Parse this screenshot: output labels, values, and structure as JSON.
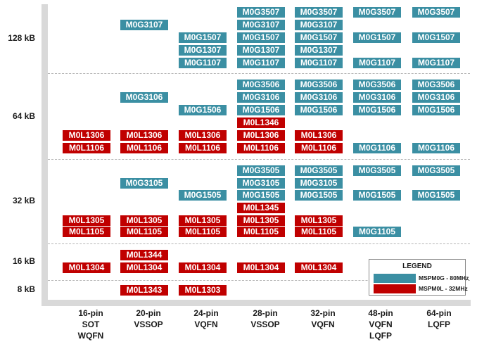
{
  "size_labels": [
    "128 kB",
    "64 kB",
    "32 kB",
    "16 kB",
    "8 kB"
  ],
  "packages": [
    {
      "lines": [
        "16-pin",
        "SOT",
        "WQFN"
      ]
    },
    {
      "lines": [
        "20-pin",
        "VSSOP"
      ]
    },
    {
      "lines": [
        "24-pin",
        "VQFN"
      ]
    },
    {
      "lines": [
        "28-pin",
        "VSSOP"
      ]
    },
    {
      "lines": [
        "32-pin",
        "VQFN"
      ]
    },
    {
      "lines": [
        "48-pin",
        "VQFN",
        "LQFP"
      ]
    },
    {
      "lines": [
        "64-pin",
        "LQFP"
      ]
    }
  ],
  "legend": {
    "title": "LEGEND",
    "items": [
      {
        "label": "MSPM0G - 80MHz",
        "color": "#3b8fa3"
      },
      {
        "label": "MSPM0L - 32MHz",
        "color": "#c00000"
      }
    ]
  },
  "colors": {
    "g": "#3b8fa3",
    "l": "#c00000"
  },
  "chips": [
    {
      "text": "M0G3507",
      "type": "g",
      "col": 3,
      "row": 0
    },
    {
      "text": "M0G3507",
      "type": "g",
      "col": 4,
      "row": 0
    },
    {
      "text": "M0G3507",
      "type": "g",
      "col": 5,
      "row": 0
    },
    {
      "text": "M0G3507",
      "type": "g",
      "col": 6,
      "row": 0
    },
    {
      "text": "M0G3107",
      "type": "g",
      "col": 1,
      "row": 1
    },
    {
      "text": "M0G3107",
      "type": "g",
      "col": 3,
      "row": 1
    },
    {
      "text": "M0G3107",
      "type": "g",
      "col": 4,
      "row": 1
    },
    {
      "text": "M0G1507",
      "type": "g",
      "col": 2,
      "row": 2
    },
    {
      "text": "M0G1507",
      "type": "g",
      "col": 3,
      "row": 2
    },
    {
      "text": "M0G1507",
      "type": "g",
      "col": 4,
      "row": 2
    },
    {
      "text": "M0G1507",
      "type": "g",
      "col": 5,
      "row": 2
    },
    {
      "text": "M0G1507",
      "type": "g",
      "col": 6,
      "row": 2
    },
    {
      "text": "M0G1307",
      "type": "g",
      "col": 2,
      "row": 3
    },
    {
      "text": "M0G1307",
      "type": "g",
      "col": 3,
      "row": 3
    },
    {
      "text": "M0G1307",
      "type": "g",
      "col": 4,
      "row": 3
    },
    {
      "text": "M0G1107",
      "type": "g",
      "col": 2,
      "row": 4
    },
    {
      "text": "M0G1107",
      "type": "g",
      "col": 3,
      "row": 4
    },
    {
      "text": "M0G1107",
      "type": "g",
      "col": 4,
      "row": 4
    },
    {
      "text": "M0G1107",
      "type": "g",
      "col": 5,
      "row": 4
    },
    {
      "text": "M0G1107",
      "type": "g",
      "col": 6,
      "row": 4
    },
    {
      "text": "M0G3506",
      "type": "g",
      "col": 3,
      "row": 5
    },
    {
      "text": "M0G3506",
      "type": "g",
      "col": 4,
      "row": 5
    },
    {
      "text": "M0G3506",
      "type": "g",
      "col": 5,
      "row": 5
    },
    {
      "text": "M0G3506",
      "type": "g",
      "col": 6,
      "row": 5
    },
    {
      "text": "M0G3106",
      "type": "g",
      "col": 1,
      "row": 6
    },
    {
      "text": "M0G3106",
      "type": "g",
      "col": 3,
      "row": 6
    },
    {
      "text": "M0G3106",
      "type": "g",
      "col": 4,
      "row": 6
    },
    {
      "text": "M0G3106",
      "type": "g",
      "col": 5,
      "row": 6
    },
    {
      "text": "M0G3106",
      "type": "g",
      "col": 6,
      "row": 6
    },
    {
      "text": "M0G1506",
      "type": "g",
      "col": 2,
      "row": 7
    },
    {
      "text": "M0G1506",
      "type": "g",
      "col": 3,
      "row": 7
    },
    {
      "text": "M0G1506",
      "type": "g",
      "col": 4,
      "row": 7
    },
    {
      "text": "M0G1506",
      "type": "g",
      "col": 5,
      "row": 7
    },
    {
      "text": "M0G1506",
      "type": "g",
      "col": 6,
      "row": 7
    },
    {
      "text": "M0L1346",
      "type": "l",
      "col": 3,
      "row": 8
    },
    {
      "text": "M0L1306",
      "type": "l",
      "col": 0,
      "row": 9
    },
    {
      "text": "M0L1306",
      "type": "l",
      "col": 1,
      "row": 9
    },
    {
      "text": "M0L1306",
      "type": "l",
      "col": 2,
      "row": 9
    },
    {
      "text": "M0L1306",
      "type": "l",
      "col": 3,
      "row": 9
    },
    {
      "text": "M0L1306",
      "type": "l",
      "col": 4,
      "row": 9
    },
    {
      "text": "M0L1106",
      "type": "l",
      "col": 0,
      "row": 10
    },
    {
      "text": "M0L1106",
      "type": "l",
      "col": 1,
      "row": 10
    },
    {
      "text": "M0L1106",
      "type": "l",
      "col": 2,
      "row": 10
    },
    {
      "text": "M0L1106",
      "type": "l",
      "col": 3,
      "row": 10
    },
    {
      "text": "M0L1106",
      "type": "l",
      "col": 4,
      "row": 10
    },
    {
      "text": "M0G1106",
      "type": "g",
      "col": 5,
      "row": 10
    },
    {
      "text": "M0G1106",
      "type": "g",
      "col": 6,
      "row": 10
    },
    {
      "text": "M0G3505",
      "type": "g",
      "col": 3,
      "row": 11
    },
    {
      "text": "M0G3505",
      "type": "g",
      "col": 4,
      "row": 11
    },
    {
      "text": "M0G3505",
      "type": "g",
      "col": 5,
      "row": 11
    },
    {
      "text": "M0G3505",
      "type": "g",
      "col": 6,
      "row": 11
    },
    {
      "text": "M0G3105",
      "type": "g",
      "col": 1,
      "row": 12
    },
    {
      "text": "M0G3105",
      "type": "g",
      "col": 3,
      "row": 12
    },
    {
      "text": "M0G3105",
      "type": "g",
      "col": 4,
      "row": 12
    },
    {
      "text": "M0G1505",
      "type": "g",
      "col": 2,
      "row": 13
    },
    {
      "text": "M0G1505",
      "type": "g",
      "col": 3,
      "row": 13
    },
    {
      "text": "M0G1505",
      "type": "g",
      "col": 4,
      "row": 13
    },
    {
      "text": "M0G1505",
      "type": "g",
      "col": 5,
      "row": 13
    },
    {
      "text": "M0G1505",
      "type": "g",
      "col": 6,
      "row": 13
    },
    {
      "text": "M0L1345",
      "type": "l",
      "col": 3,
      "row": 14
    },
    {
      "text": "M0L1305",
      "type": "l",
      "col": 0,
      "row": 15
    },
    {
      "text": "M0L1305",
      "type": "l",
      "col": 1,
      "row": 15
    },
    {
      "text": "M0L1305",
      "type": "l",
      "col": 2,
      "row": 15
    },
    {
      "text": "M0L1305",
      "type": "l",
      "col": 3,
      "row": 15
    },
    {
      "text": "M0L1305",
      "type": "l",
      "col": 4,
      "row": 15
    },
    {
      "text": "M0L1105",
      "type": "l",
      "col": 0,
      "row": 16
    },
    {
      "text": "M0L1105",
      "type": "l",
      "col": 1,
      "row": 16
    },
    {
      "text": "M0L1105",
      "type": "l",
      "col": 2,
      "row": 16
    },
    {
      "text": "M0L1105",
      "type": "l",
      "col": 3,
      "row": 16
    },
    {
      "text": "M0L1105",
      "type": "l",
      "col": 4,
      "row": 16
    },
    {
      "text": "M0G1105",
      "type": "g",
      "col": 5,
      "row": 16
    },
    {
      "text": "M0L1344",
      "type": "l",
      "col": 1,
      "row": 17
    },
    {
      "text": "M0L1304",
      "type": "l",
      "col": 0,
      "row": 18
    },
    {
      "text": "M0L1304",
      "type": "l",
      "col": 1,
      "row": 18
    },
    {
      "text": "M0L1304",
      "type": "l",
      "col": 2,
      "row": 18
    },
    {
      "text": "M0L1304",
      "type": "l",
      "col": 3,
      "row": 18
    },
    {
      "text": "M0L1304",
      "type": "l",
      "col": 4,
      "row": 18
    },
    {
      "text": "M0L1343",
      "type": "l",
      "col": 1,
      "row": 19
    },
    {
      "text": "M0L1303",
      "type": "l",
      "col": 2,
      "row": 19
    }
  ]
}
